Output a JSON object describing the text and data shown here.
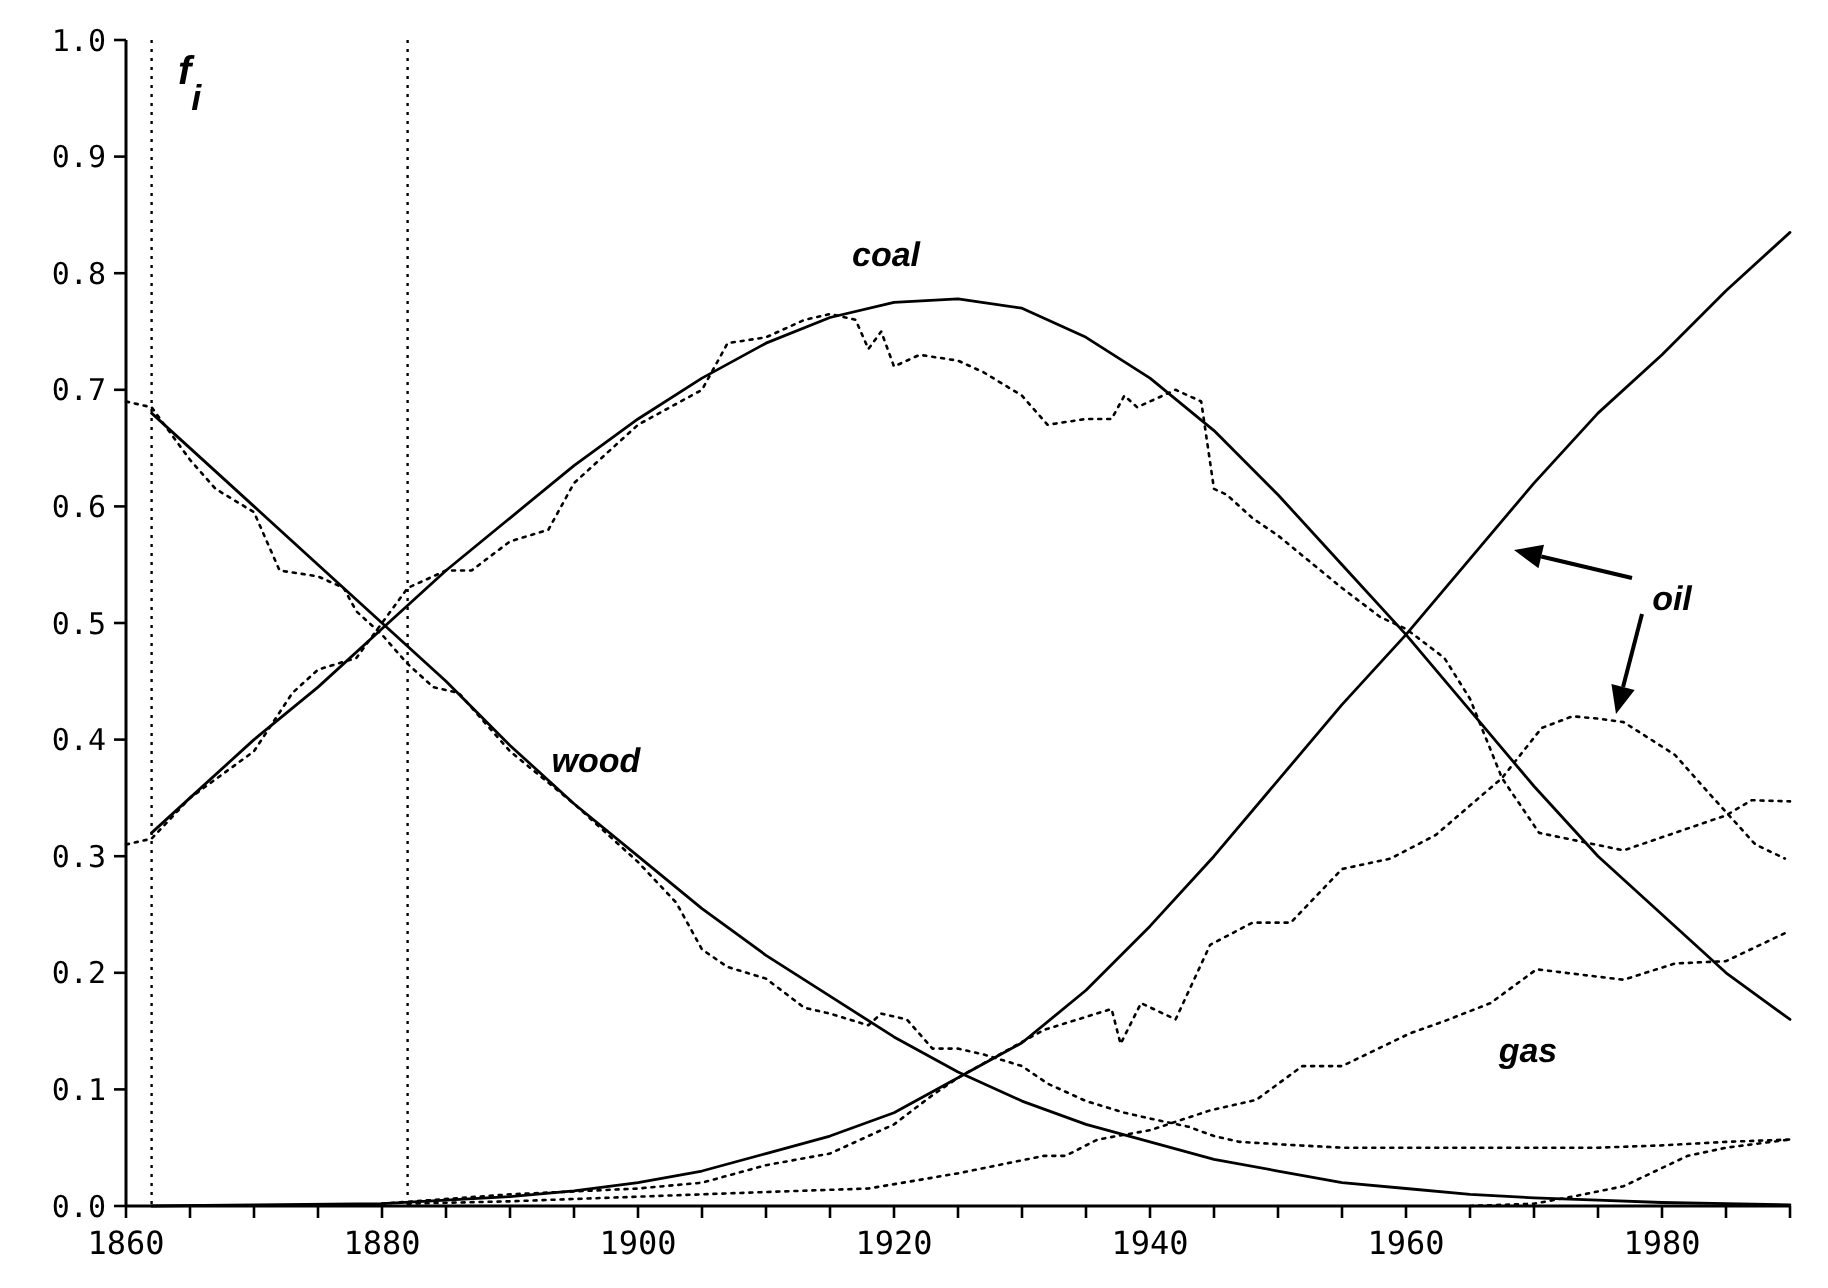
{
  "chart_data": {
    "type": "line",
    "ylabel": "f$_{i}$",
    "xlim": [
      1860,
      1990
    ],
    "ylim": [
      0,
      1.0
    ],
    "xticks": [
      1860,
      {
        "value": 1865,
        "label": null
      },
      {
        "value": 1870,
        "label": null
      },
      {
        "value": 1875,
        "label": null
      },
      1880,
      {
        "value": 1885,
        "label": null
      },
      {
        "value": 1890,
        "label": null
      },
      {
        "value": 1895,
        "label": null
      },
      1900,
      {
        "value": 1905,
        "label": null
      },
      {
        "value": 1910,
        "label": null
      },
      {
        "value": 1915,
        "label": null
      },
      1920,
      {
        "value": 1925,
        "label": null
      },
      {
        "value": 1930,
        "label": null
      },
      {
        "value": 1935,
        "label": null
      },
      1940,
      {
        "value": 1945,
        "label": null
      },
      {
        "value": 1950,
        "label": null
      },
      {
        "value": 1955,
        "label": null
      },
      1960,
      {
        "value": 1965,
        "label": null
      },
      {
        "value": 1970,
        "label": null
      },
      {
        "value": 1975,
        "label": null
      },
      1980,
      {
        "value": 1985,
        "label": null
      },
      {
        "value": 1990,
        "label": null
      }
    ],
    "yticks": [
      {
        "value": 0,
        "label": "0.0"
      },
      0.1,
      0.2,
      0.3,
      0.4,
      0.5,
      0.6,
      0.7,
      0.8,
      0.9,
      {
        "value": 1,
        "label": "1.0"
      }
    ],
    "grid": false,
    "marker": "none",
    "series": [
      {
        "color": "#000000",
        "line_style": "solid",
        "x": [
          1862,
          1865,
          1870,
          1875,
          1880,
          1885,
          1890,
          1895,
          1900,
          1905,
          1910,
          1915,
          1920,
          1925,
          1930,
          1935,
          1940,
          1945,
          1950,
          1955,
          1960,
          1965,
          1970,
          1975,
          1980,
          1985,
          1990
        ],
        "values": [
          0.32,
          0.35,
          0.4,
          0.445,
          0.495,
          0.545,
          0.59,
          0.635,
          0.675,
          0.71,
          0.74,
          0.762,
          0.775,
          0.778,
          0.77,
          0.745,
          0.71,
          0.665,
          0.61,
          0.55,
          0.49,
          0.425,
          0.36,
          0.3,
          0.25,
          0.2,
          0.16
        ]
      },
      {
        "color": "#000000",
        "line_style": "solid",
        "x": [
          1862,
          1865,
          1870,
          1875,
          1880,
          1885,
          1890,
          1895,
          1900,
          1905,
          1910,
          1915,
          1920,
          1925,
          1930,
          1935,
          1940,
          1945,
          1950,
          1955,
          1960,
          1965,
          1970,
          1975,
          1980,
          1985,
          1990
        ],
        "values": [
          0.68,
          0.65,
          0.6,
          0.55,
          0.5,
          0.45,
          0.395,
          0.345,
          0.3,
          0.255,
          0.215,
          0.18,
          0.145,
          0.115,
          0.09,
          0.07,
          0.055,
          0.04,
          0.03,
          0.02,
          0.015,
          0.01,
          0.007,
          0.005,
          0.003,
          0.002,
          0.001
        ]
      },
      {
        "color": "#000000",
        "line_style": "solid",
        "x": [
          1862,
          1870,
          1880,
          1885,
          1890,
          1895,
          1900,
          1905,
          1910,
          1915,
          1920,
          1925,
          1930,
          1935,
          1940,
          1945,
          1950,
          1955,
          1960,
          1965,
          1970,
          1975,
          1980,
          1985,
          1990
        ],
        "values": [
          0.0,
          0.001,
          0.002,
          0.005,
          0.008,
          0.013,
          0.02,
          0.03,
          0.045,
          0.06,
          0.08,
          0.11,
          0.14,
          0.185,
          0.24,
          0.3,
          0.365,
          0.43,
          0.49,
          0.555,
          0.62,
          0.68,
          0.73,
          0.785,
          0.835
        ]
      },
      {
        "color": "#000000",
        "line_style": "dotted",
        "x": [
          1860,
          1862,
          1865,
          1867,
          1870,
          1872,
          1875,
          1877,
          1878,
          1880,
          1882,
          1884,
          1886,
          1890,
          1895,
          1900,
          1903,
          1905,
          1907,
          1910,
          1913,
          1915,
          1918,
          1919,
          1921,
          1923,
          1925,
          1927,
          1930,
          1932,
          1935,
          1938,
          1940,
          1943,
          1945,
          1947,
          1950,
          1955,
          1960,
          1965,
          1970,
          1975,
          1980,
          1985,
          1990
        ],
        "values": [
          0.69,
          0.685,
          0.64,
          0.615,
          0.595,
          0.545,
          0.54,
          0.53,
          0.51,
          0.49,
          0.465,
          0.445,
          0.44,
          0.39,
          0.345,
          0.295,
          0.26,
          0.22,
          0.205,
          0.195,
          0.17,
          0.165,
          0.155,
          0.165,
          0.16,
          0.135,
          0.135,
          0.13,
          0.12,
          0.105,
          0.09,
          0.08,
          0.075,
          0.068,
          0.06,
          0.055,
          0.053,
          0.05,
          0.05,
          0.05,
          0.05,
          0.05,
          0.052,
          0.055,
          0.057
        ]
      },
      {
        "color": "#000000",
        "line_style": "dotted",
        "x": [
          1860,
          1862,
          1865,
          1870,
          1873,
          1875,
          1878,
          1880,
          1882,
          1885,
          1887,
          1890,
          1893,
          1895,
          1900,
          1905,
          1907,
          1910,
          1913,
          1915,
          1917,
          1918,
          1919,
          1920,
          1922,
          1925,
          1927,
          1930,
          1932,
          1935,
          1937,
          1938,
          1939,
          1940,
          1942,
          1944,
          1945,
          1946,
          1948,
          1950,
          1955,
          1958,
          1960,
          1963,
          1965,
          1967.5,
          1970.4,
          1977,
          1985,
          1987,
          1990
        ],
        "values": [
          0.31,
          0.315,
          0.35,
          0.39,
          0.44,
          0.46,
          0.47,
          0.5,
          0.53,
          0.545,
          0.545,
          0.57,
          0.58,
          0.62,
          0.67,
          0.7,
          0.74,
          0.745,
          0.76,
          0.765,
          0.76,
          0.735,
          0.75,
          0.72,
          0.73,
          0.725,
          0.715,
          0.695,
          0.67,
          0.675,
          0.675,
          0.695,
          0.685,
          0.69,
          0.7,
          0.69,
          0.615,
          0.61,
          0.59,
          0.575,
          0.53,
          0.505,
          0.495,
          0.47,
          0.435,
          0.367,
          0.32,
          0.305,
          0.335,
          0.348,
          0.347
        ]
      },
      {
        "color": "#000000",
        "line_style": "dotted",
        "x": [
          1880,
          1890,
          1900,
          1905,
          1910,
          1915,
          1920,
          1923,
          1925,
          1927.6,
          1931.7,
          1937,
          1937.7,
          1939.3,
          1942,
          1944.7,
          1948,
          1951,
          1955,
          1958.8,
          1962.3,
          1967.5,
          1970.6,
          1973,
          1975,
          1977,
          1981,
          1984,
          1987.3,
          1989.6
        ],
        "values": [
          0.002,
          0.01,
          0.015,
          0.02,
          0.035,
          0.045,
          0.07,
          0.095,
          0.11,
          0.126,
          0.151,
          0.169,
          0.139,
          0.174,
          0.16,
          0.224,
          0.243,
          0.243,
          0.289,
          0.298,
          0.318,
          0.367,
          0.41,
          0.42,
          0.418,
          0.415,
          0.387,
          0.35,
          0.31,
          0.298
        ]
      },
      {
        "color": "#000000",
        "line_style": "dotted",
        "x": [
          1882,
          1890,
          1900,
          1910,
          1918,
          1925,
          1931.7,
          1933.4,
          1935.9,
          1940,
          1944.7,
          1948.3,
          1951.9,
          1955,
          1960.3,
          1963.1,
          1966.6,
          1970.2,
          1977,
          1981,
          1985,
          1989.6
        ],
        "values": [
          0.002,
          0.004,
          0.008,
          0.012,
          0.015,
          0.028,
          0.043,
          0.043,
          0.057,
          0.065,
          0.082,
          0.091,
          0.12,
          0.12,
          0.148,
          0.159,
          0.174,
          0.203,
          0.194,
          0.208,
          0.21,
          0.234
        ]
      },
      {
        "color": "#000000",
        "line_style": "dotted",
        "x": [
          1965,
          1970,
          1973,
          1977,
          1982,
          1985,
          1990
        ],
        "values": [
          0.0,
          0.002,
          0.008,
          0.017,
          0.043,
          0.05,
          0.057
        ]
      }
    ],
    "ref_lines": [
      {
        "axis": "x",
        "value": 1862,
        "line_style": "dotted",
        "color": "#000000"
      },
      {
        "axis": "x",
        "value": 1882,
        "line_style": "dotted",
        "color": "#000000"
      }
    ],
    "annotations": [
      "coal",
      "wood",
      "oil",
      "gas"
    ]
  }
}
